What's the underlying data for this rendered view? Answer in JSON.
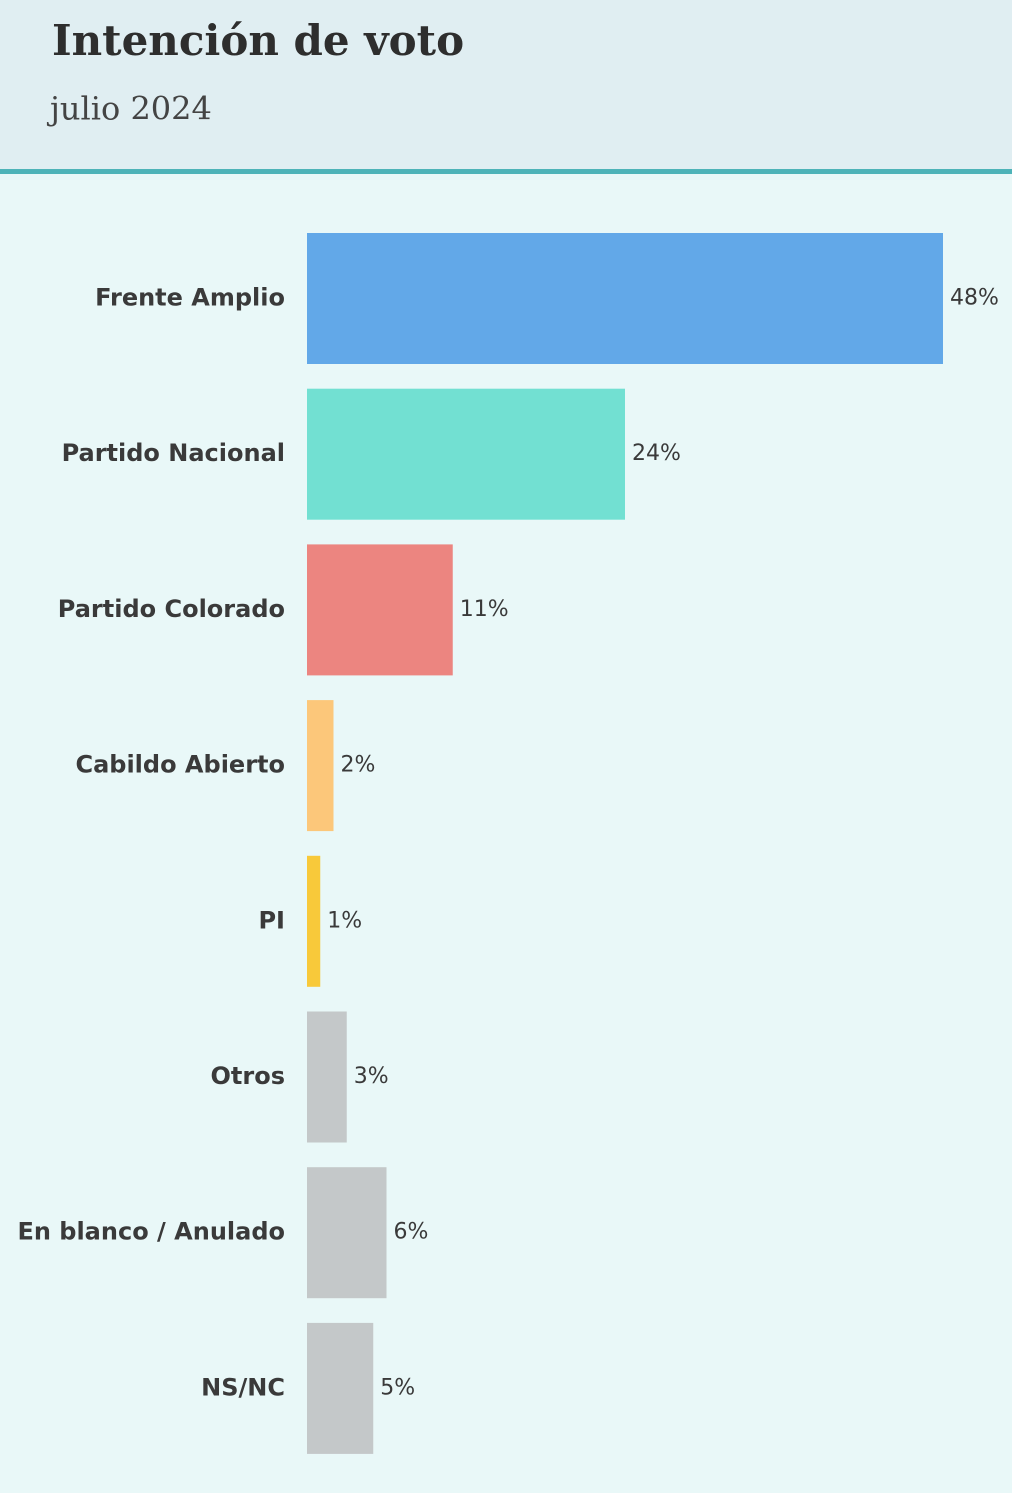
{
  "chart_data": {
    "type": "bar",
    "orientation": "horizontal",
    "title": "Intención de voto",
    "subtitle": "julio 2024",
    "categories": [
      "Frente Amplio",
      "Partido Nacional",
      "Partido Colorado",
      "Cabildo Abierto",
      "PI",
      "Otros",
      "En blanco / Anulado",
      "NS/NC"
    ],
    "values": [
      48,
      24,
      11,
      2,
      1,
      3,
      6,
      5
    ],
    "value_labels": [
      "48%",
      "24%",
      "11%",
      "2%",
      "1%",
      "3%",
      "6%",
      "5%"
    ],
    "colors": [
      "#62a8e8",
      "#72e0d2",
      "#ec8580",
      "#fcc77a",
      "#f8c93a",
      "#c4c8c9",
      "#c4c8c9",
      "#c4c8c9"
    ]
  }
}
